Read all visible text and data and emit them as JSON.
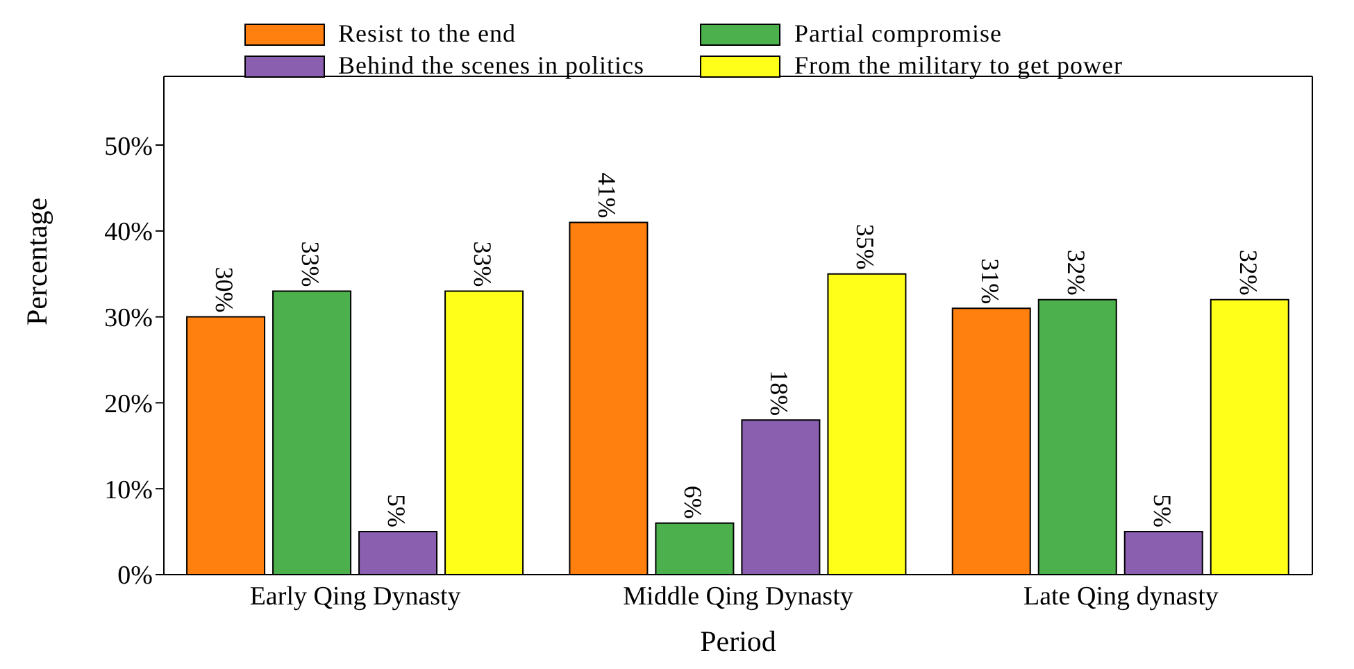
{
  "chart_data": {
    "type": "bar",
    "xlabel": "Period",
    "ylabel": "Percentage",
    "categories": [
      "Early Qing Dynasty",
      "Middle Qing Dynasty",
      "Late Qing dynasty"
    ],
    "series": [
      {
        "name": "Resist to the end",
        "color": "#ff7f0f",
        "values": [
          30,
          41,
          31
        ],
        "value_labels": [
          "30%",
          "41%",
          "31%"
        ]
      },
      {
        "name": "Partial compromise",
        "color": "#4cb04c",
        "values": [
          33,
          6,
          32
        ],
        "value_labels": [
          "33%",
          "6%",
          "32%"
        ]
      },
      {
        "name": "Behind the scenes in politics",
        "color": "#8a5fb0",
        "values": [
          5,
          18,
          5
        ],
        "value_labels": [
          "5%",
          "18%",
          "5%"
        ]
      },
      {
        "name": "From the military to get power",
        "color": "#ffff1a",
        "values": [
          33,
          35,
          32
        ],
        "value_labels": [
          "33%",
          "35%",
          "32%"
        ]
      }
    ],
    "ylim": [
      0,
      58
    ],
    "yticks": [
      {
        "value": 0,
        "label": "0%"
      },
      {
        "value": 10,
        "label": "10%"
      },
      {
        "value": 20,
        "label": "20%"
      },
      {
        "value": 30,
        "label": "30%"
      },
      {
        "value": 40,
        "label": "40%"
      },
      {
        "value": 50,
        "label": "50%"
      }
    ],
    "legend": "top",
    "grid": false
  }
}
